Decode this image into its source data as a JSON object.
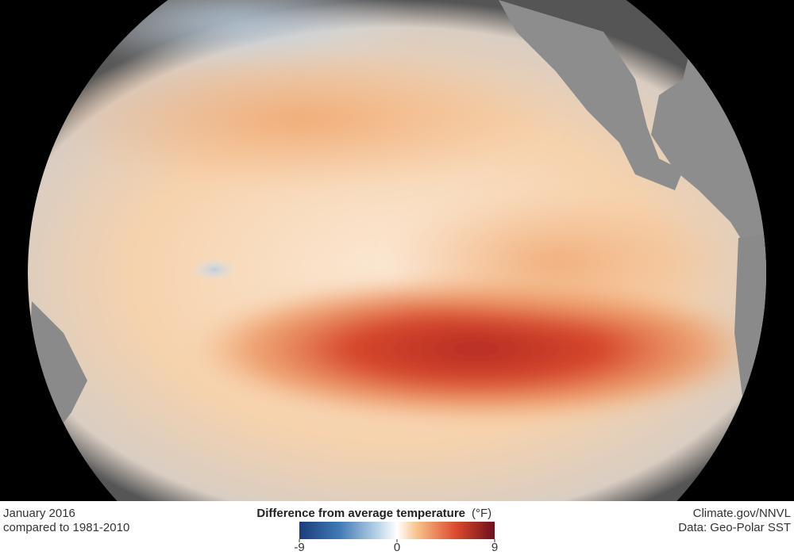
{
  "footer": {
    "left": {
      "line1": "January 2016",
      "line2": "compared to 1981-2010"
    },
    "right": {
      "line1": "Climate.gov/NNVL",
      "line2": "Data: Geo-Polar SST"
    }
  },
  "legend": {
    "title": "Difference from average temperature",
    "unit": "(°F)",
    "range": [
      -9,
      9
    ],
    "ticks": [
      -9,
      0,
      9
    ]
  }
}
